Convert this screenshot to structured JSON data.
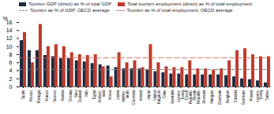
{
  "chart_data": {
    "type": "bar",
    "categories": [
      "Spain",
      "Mexico",
      "Portugal",
      "France",
      "Greece",
      "Austria",
      "Croatia",
      "New\nZealand",
      "Italy",
      "Egypt",
      "Switzer-\nland",
      "Korea",
      "Latvia",
      "Nether-\nlands",
      "Colombia",
      "Ireland",
      "Japan",
      "United\nKingdom",
      "Chile",
      "Australia",
      "Luxem-\nbourg",
      "Czech\nRepublic",
      "Slovak\nRepublic",
      "Slovenia",
      "Hungary",
      "Denmark",
      "Belgium",
      "Canada",
      "Germany",
      "Poland",
      "Luxem-\nbourg",
      "Turkey"
    ],
    "series": [
      {
        "name": "Tourism GDP (direct) as % of total GDP",
        "type": "bar",
        "color": "#1b2a40",
        "values": [
          11.5,
          9.0,
          9.0,
          7.8,
          7.5,
          7.0,
          7.0,
          6.5,
          6.2,
          5.8,
          5.5,
          5.2,
          4.8,
          4.5,
          4.5,
          4.5,
          4.2,
          3.8,
          3.5,
          3.2,
          3.2,
          3.0,
          3.0,
          3.0,
          3.0,
          3.0,
          2.8,
          2.5,
          2.0,
          1.8,
          1.5,
          1.0
        ]
      },
      {
        "name": "Total tourism employment (direct) as % of total employment",
        "type": "bar",
        "color": "#c0392b",
        "values": [
          13.5,
          6.0,
          15.5,
          10.0,
          10.5,
          10.0,
          8.5,
          8.0,
          7.8,
          8.0,
          5.0,
          2.5,
          8.5,
          6.0,
          6.5,
          4.8,
          10.5,
          6.0,
          5.0,
          4.8,
          4.8,
          6.5,
          4.5,
          4.5,
          4.2,
          4.5,
          6.5,
          9.0,
          9.5,
          8.0,
          7.5,
          7.5
        ]
      },
      {
        "name": "Tourism as % of GDP, OECD average",
        "type": "hline",
        "line_style": "dashed",
        "color": "#888888",
        "value": 4.3
      },
      {
        "name": "Tourism as % of total employment, OECD average",
        "type": "hline",
        "line_style": "dashed",
        "color": "#e07060",
        "value": 7.2
      }
    ],
    "ylabel": "%",
    "ylim": [
      0,
      16
    ],
    "yticks": [
      0,
      2,
      4,
      6,
      8,
      10,
      12,
      14,
      16
    ],
    "grid": false,
    "legend": "top"
  }
}
